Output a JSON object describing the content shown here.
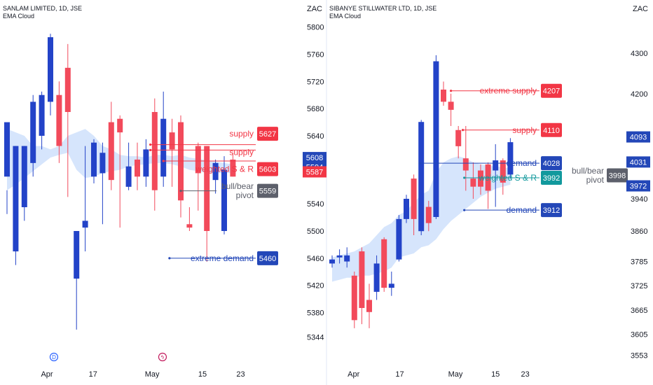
{
  "colors": {
    "up": "#2343c8",
    "down": "#f24a5b",
    "cloud": "#cfe0fb",
    "supply": "#f23645",
    "demand": "#2347b8",
    "pivot": "#5d606b",
    "teal": "#12999d",
    "axis": "#131722"
  },
  "chart_data": [
    {
      "type": "candlestick",
      "title": "SANLAM LIMITED, 1D, JSE",
      "indicator": "EMA Cloud",
      "currency": "ZAC",
      "ylim": [
        5325,
        5815
      ],
      "y_ticks": [
        "5800",
        "5760",
        "5720",
        "5680",
        "5640",
        "5600",
        "5540",
        "5500",
        "5460",
        "5420",
        "5380",
        "5344"
      ],
      "y_tick_values": [
        5800,
        5760,
        5720,
        5680,
        5640,
        5600,
        5540,
        5500,
        5460,
        5420,
        5380,
        5344
      ],
      "x_labels": [
        "Apr",
        "17",
        "May",
        "15",
        "23"
      ],
      "x_label_index": [
        4.6,
        9.9,
        16.7,
        22.5,
        26.9
      ],
      "events": [
        {
          "index": 5.4,
          "glyph": "D",
          "color": "#2962ff"
        },
        {
          "index": 17.9,
          "glyph": "ϟ",
          "color": "#c2185b"
        }
      ],
      "candles": [
        [
          5580,
          5660,
          5560,
          5525
        ],
        [
          5470,
          5625,
          5625,
          5450
        ],
        [
          5535,
          5625,
          5625,
          5515
        ],
        [
          5600,
          5690,
          5700,
          5580
        ],
        [
          5640,
          5700,
          5705,
          5620
        ],
        [
          5690,
          5785,
          5790,
          5670
        ],
        [
          5700,
          5625,
          5720,
          5600
        ],
        [
          5740,
          5675,
          5775,
          5550
        ],
        [
          5430,
          5500,
          5500,
          5355
        ],
        [
          5505,
          5515,
          5625,
          5470
        ],
        [
          5580,
          5630,
          5635,
          5570
        ],
        [
          5585,
          5615,
          5630,
          5510
        ],
        [
          5660,
          5575,
          5690,
          5560
        ],
        [
          5665,
          5645,
          5670,
          5505
        ],
        [
          5565,
          5595,
          5630,
          5560
        ],
        [
          5605,
          5580,
          5630,
          5560
        ],
        [
          5580,
          5620,
          5635,
          5565
        ],
        [
          5675,
          5560,
          5695,
          5530
        ],
        [
          5580,
          5665,
          5705,
          5565
        ],
        [
          5645,
          5620,
          5665,
          5565
        ],
        [
          5660,
          5545,
          5670,
          5520
        ],
        [
          5510,
          5505,
          5535,
          5500
        ],
        [
          5625,
          5585,
          5630,
          5530
        ],
        [
          5625,
          5500,
          5625,
          5455
        ],
        [
          5575,
          5600,
          5605,
          5555
        ],
        [
          5500,
          5590,
          5610,
          5495
        ],
        [
          5605,
          5580,
          5615,
          5580
        ]
      ],
      "cloud_top": [
        5650,
        5645,
        5640,
        5625,
        5625,
        5620,
        5625,
        5640,
        5645,
        5650,
        5640,
        5625,
        5620,
        5612,
        5610,
        5610,
        5608,
        5612,
        5612,
        5610,
        5612,
        5608,
        5606,
        5604,
        5602,
        5600,
        5598
      ],
      "cloud_bot": [
        5560,
        5568,
        5578,
        5588,
        5598,
        5608,
        5612,
        5615,
        5590,
        5578,
        5580,
        5585,
        5588,
        5590,
        5595,
        5597,
        5598,
        5600,
        5600,
        5598,
        5595,
        5590,
        5588,
        5585,
        5585,
        5585,
        5586
      ],
      "levels": [
        {
          "name": "supply",
          "label": "supply",
          "value": 5627,
          "tag": "5627",
          "color": "#f23645",
          "start": 16.5,
          "text_y": 5643
        },
        {
          "name": "supply-2",
          "label": "supply",
          "value": 5619,
          "tag": "",
          "color": "#f23645",
          "start": 16.5,
          "text_y": 5616
        },
        {
          "name": "weighted-sr",
          "label": "weighted S & R",
          "value": 5603,
          "tag": "5603",
          "color": "#f23645",
          "start": 18.0,
          "text_y": 5591
        },
        {
          "name": "bull-bear-pivot",
          "label": "bull/bear\npivot",
          "value": 5559,
          "tag": "5559",
          "color": "#5d606b",
          "start": 20.0,
          "text_y": 5559
        },
        {
          "name": "extreme-demand",
          "label": "extreme demand",
          "value": 5460,
          "tag": "5460",
          "color": "#2347b8",
          "start": 18.7,
          "text_y": 5460
        }
      ],
      "axis_tags": [
        {
          "value": 5608,
          "label": "5608",
          "color": "#2347b8"
        },
        {
          "value": 5594,
          "label": "5594",
          "color": "#2347b8"
        },
        {
          "value": 5587,
          "label": "5587",
          "color": "#f23645"
        }
      ]
    },
    {
      "type": "candlestick",
      "title": "SIBANYE STILLWATER LTD, 1D, JSE",
      "indicator": "EMA Cloud",
      "currency": "ZAC",
      "ylim": [
        3535,
        4390
      ],
      "y_ticks": [
        "4300",
        "4200",
        "3940",
        "3860",
        "3785",
        "3725",
        "3665",
        "3605",
        "3553"
      ],
      "y_tick_values": [
        4300,
        4200,
        3940,
        3860,
        3785,
        3725,
        3665,
        3605,
        3553
      ],
      "x_labels": [
        "Apr",
        "17",
        "May",
        "15",
        "23"
      ],
      "x_label_index": [
        2.9,
        9.1,
        16.6,
        22.0,
        26.0
      ],
      "events": [],
      "candles": [
        [
          3780,
          3790,
          3800,
          3770
        ],
        [
          3795,
          3800,
          3815,
          3780
        ],
        [
          3785,
          3800,
          3820,
          3770
        ],
        [
          3750,
          3640,
          3760,
          3620
        ],
        [
          3810,
          3670,
          3820,
          3630
        ],
        [
          3690,
          3660,
          3730,
          3620
        ],
        [
          3710,
          3780,
          3800,
          3690
        ],
        [
          3840,
          3720,
          3845,
          3710
        ],
        [
          3720,
          3730,
          3760,
          3700
        ],
        [
          3790,
          3890,
          3900,
          3785
        ],
        [
          3890,
          3940,
          3950,
          3880
        ],
        [
          3990,
          3890,
          4000,
          3850
        ],
        [
          3860,
          4130,
          4135,
          3850
        ],
        [
          3920,
          3880,
          3935,
          3860
        ],
        [
          3895,
          4280,
          4295,
          3890
        ],
        [
          4210,
          4180,
          4230,
          4170
        ],
        [
          4180,
          4160,
          4200,
          4120
        ],
        [
          4110,
          4070,
          4120,
          4040
        ],
        [
          4040,
          4010,
          4120,
          3960
        ],
        [
          3990,
          3970,
          4030,
          3940
        ],
        [
          4010,
          3970,
          4025,
          3950
        ],
        [
          4025,
          3960,
          4030,
          3915
        ],
        [
          4010,
          4035,
          4075,
          3920
        ],
        [
          4035,
          3980,
          4040,
          3950
        ],
        [
          4000,
          4080,
          4090,
          3990
        ]
      ],
      "cloud_top": [
        3795,
        3800,
        3805,
        3810,
        3820,
        3830,
        3850,
        3870,
        3880,
        3900,
        3910,
        3930,
        3950,
        3960,
        4005,
        4030,
        4040,
        4045,
        4040,
        4030,
        4025,
        4022,
        4020,
        4018,
        4015
      ],
      "cloud_bot": [
        3735,
        3740,
        3745,
        3745,
        3750,
        3750,
        3755,
        3760,
        3770,
        3795,
        3800,
        3805,
        3820,
        3825,
        3840,
        3865,
        3885,
        3900,
        3915,
        3930,
        3945,
        3955,
        3965,
        3970,
        3975
      ],
      "levels": [
        {
          "name": "extreme-supply",
          "label": "extreme supply",
          "value": 4207,
          "tag": "4207",
          "color": "#f23645",
          "start": 16.0,
          "text_y": 4207
        },
        {
          "name": "supply",
          "label": "supply",
          "value": 4110,
          "tag": "4110",
          "color": "#f23645",
          "start": 17.6,
          "text_y": 4110
        },
        {
          "name": "demand",
          "label": "demand",
          "value": 4028,
          "tag": "4028",
          "color": "#2347b8",
          "start": 11.8,
          "text_y": 4028
        },
        {
          "name": "weighted-sr",
          "label": "weighted S & R",
          "value": 3992,
          "tag": "3992",
          "color": "#12999d",
          "start": 17.8,
          "text_y": 3992
        },
        {
          "name": "bull-bear-pivot",
          "label": "bull/bear\npivot",
          "value": 3998,
          "tag": "3998",
          "color": "#5d606b",
          "start": 23.5,
          "text_y": 3998
        },
        {
          "name": "demand-2",
          "label": "demand",
          "value": 3912,
          "tag": "3912",
          "color": "#2347b8",
          "start": 17.8,
          "text_y": 3912
        }
      ],
      "axis_tags": [
        {
          "value": 4093,
          "label": "4093",
          "color": "#2347b8"
        },
        {
          "value": 4031,
          "label": "4031",
          "color": "#2347b8"
        },
        {
          "value": 3972,
          "label": "3972",
          "color": "#2347b8"
        }
      ]
    }
  ]
}
